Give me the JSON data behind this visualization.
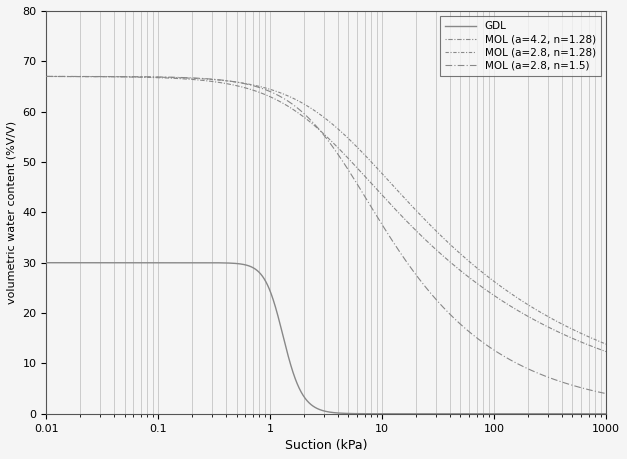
{
  "title": "",
  "xlabel": "Suction (kPa)",
  "ylabel": "volumetric water content (%V/V)",
  "xlim": [
    0.01,
    1000
  ],
  "ylim": [
    0,
    80
  ],
  "yticks": [
    0,
    10,
    20,
    30,
    40,
    50,
    60,
    70,
    80
  ],
  "legend_entries": [
    "GDL",
    "MOL (a=4.2, n=1.28)",
    "MOL (a=2.8, n=1.28)",
    "MOL (a=2.8, n=1.5)"
  ],
  "gdl": {
    "theta_s": 30.0,
    "theta_r": 0.0,
    "alpha_kpa": 0.8,
    "n": 5.5
  },
  "mol1": {
    "theta_s": 67.0,
    "theta_r": 0.0,
    "alpha_kpa": 0.42,
    "n": 1.28
  },
  "mol2": {
    "theta_s": 67.0,
    "theta_r": 0.0,
    "alpha_kpa": 0.28,
    "n": 1.28
  },
  "mol3": {
    "theta_s": 67.0,
    "theta_r": 0.0,
    "alpha_kpa": 0.28,
    "n": 1.5
  },
  "line_color": "#888888",
  "background_color": "#f5f5f5",
  "grid_color": "#bbbbbb"
}
